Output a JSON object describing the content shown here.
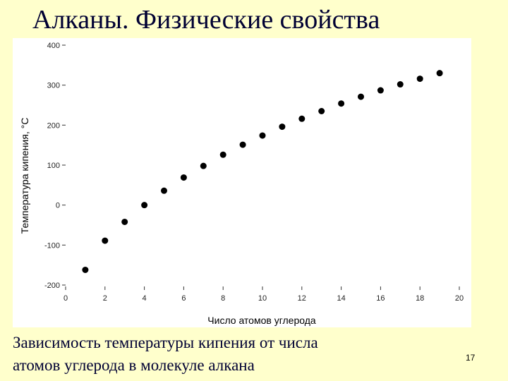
{
  "slide": {
    "title": "Алканы. Физические свойства",
    "caption_line1": "Зависимость температуры кипения от числа",
    "caption_line2": "атомов углерода в молекуле алкана",
    "number": "17"
  },
  "chart_data": {
    "type": "scatter",
    "title": "",
    "xlabel": "Число атомов углерода",
    "ylabel": "Температура кипения, °C",
    "xlim": [
      0,
      20
    ],
    "ylim": [
      -200,
      400
    ],
    "xticks": [
      0,
      2,
      4,
      6,
      8,
      10,
      12,
      14,
      16,
      18,
      20
    ],
    "yticks": [
      -200,
      -100,
      0,
      100,
      200,
      300,
      400
    ],
    "grid": false,
    "legend": "none",
    "marker_color": "#000000",
    "series": [
      {
        "x": [
          1,
          2,
          3,
          4,
          5,
          6,
          7,
          8,
          9,
          10,
          11,
          12,
          13,
          14,
          15,
          16,
          17,
          18,
          19
        ],
        "y": [
          -162,
          -89,
          -42,
          0,
          36,
          69,
          98,
          126,
          151,
          174,
          196,
          216,
          235,
          254,
          271,
          287,
          302,
          316,
          330
        ]
      }
    ]
  }
}
